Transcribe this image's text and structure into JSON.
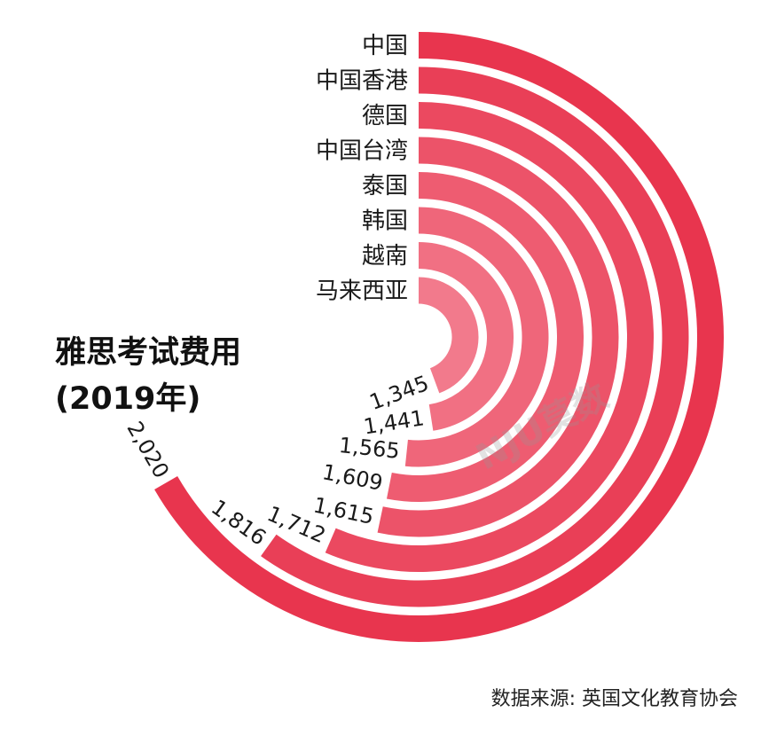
{
  "chart_data": {
    "type": "bar",
    "subtype": "radial-bar",
    "title": "雅思考试费用",
    "subtitle": "(2019年)",
    "categories": [
      "中国",
      "中国香港",
      "德国",
      "中国台湾",
      "泰国",
      "韩国",
      "越南",
      "马来西亚"
    ],
    "values": [
      2020,
      1816,
      1712,
      1615,
      1609,
      1565,
      1441,
      1345
    ],
    "value_labels": [
      "2,020",
      "1,816",
      "1,712",
      "1,615",
      "1,609",
      "1,565",
      "1,441",
      "1,345"
    ],
    "xlabel": "",
    "ylabel": "",
    "grid": false,
    "legend": "none"
  },
  "colors": {
    "outer_bar": "#e8354e",
    "inner_bar": "#f27a8c",
    "text": "#1a1a1a"
  },
  "watermark": "NJU莫数",
  "source": "数据来源: 英国文化教育协会"
}
